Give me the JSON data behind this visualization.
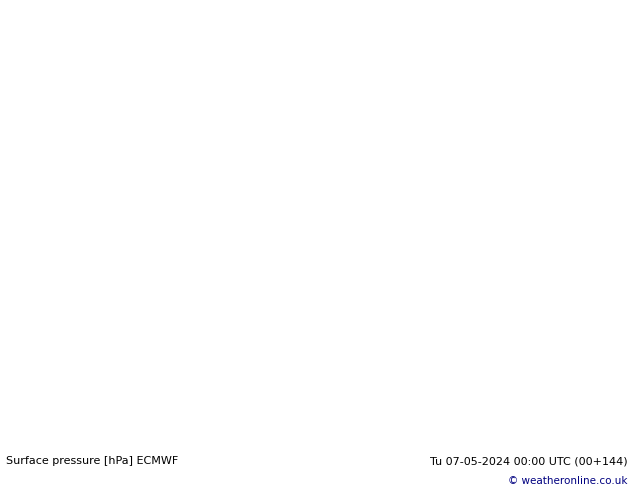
{
  "bottom_left_text": "Surface pressure [hPa] ECMWF",
  "bottom_right_text": "Tu 07-05-2024 00:00 UTC (00+144)",
  "copyright_text": "© weatheronline.co.uk",
  "bg_color": "#ffffff",
  "bottom_text_color": "#000000",
  "copyright_color": "#000080",
  "fig_width": 6.34,
  "fig_height": 4.9,
  "dpi": 100,
  "ocean_color": "#d2d2d8",
  "land_color": "#c8e8b0",
  "border_color": "#808080",
  "blue_contour_color": "#0000cc",
  "red_contour_color": "#cc0000",
  "black_contour_color": "#000000"
}
